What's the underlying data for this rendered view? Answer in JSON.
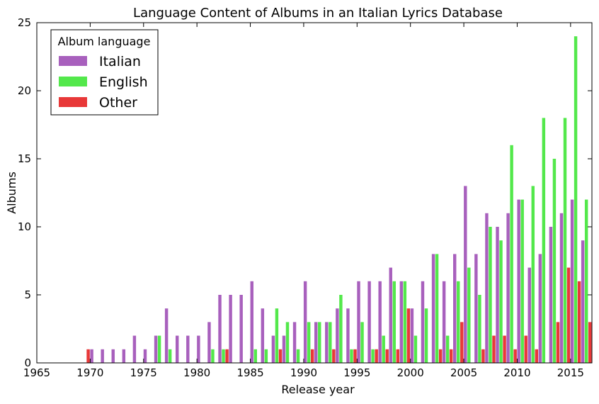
{
  "chart_data": {
    "type": "bar",
    "title": "Language Content of Albums in an Italian Lyrics Database",
    "xlabel": "Release year",
    "ylabel": "Albums",
    "xlim": [
      1965,
      2017
    ],
    "ylim": [
      0,
      25
    ],
    "xticks": [
      1965,
      1970,
      1975,
      1980,
      1985,
      1990,
      1995,
      2000,
      2005,
      2010,
      2015
    ],
    "yticks": [
      0,
      5,
      10,
      15,
      20,
      25
    ],
    "legend": {
      "title": "Album language",
      "position": "top-left"
    },
    "x": [
      1969,
      1970,
      1971,
      1972,
      1973,
      1974,
      1975,
      1976,
      1977,
      1978,
      1979,
      1980,
      1981,
      1982,
      1983,
      1984,
      1985,
      1986,
      1987,
      1988,
      1989,
      1990,
      1991,
      1992,
      1993,
      1994,
      1995,
      1996,
      1997,
      1998,
      1999,
      2000,
      2001,
      2002,
      2003,
      2004,
      2005,
      2006,
      2007,
      2008,
      2009,
      2010,
      2011,
      2012,
      2013,
      2014,
      2015,
      2016
    ],
    "series": [
      {
        "name": "Italian",
        "color": "#a860bd",
        "values": [
          0,
          1,
          1,
          1,
          1,
          2,
          1,
          2,
          4,
          2,
          2,
          2,
          3,
          5,
          5,
          5,
          6,
          4,
          2,
          2,
          3,
          6,
          3,
          3,
          4,
          4,
          6,
          6,
          6,
          7,
          6,
          4,
          6,
          8,
          6,
          8,
          13,
          8,
          11,
          10,
          11,
          12,
          7,
          8,
          10,
          11,
          12,
          9
        ]
      },
      {
        "name": "English",
        "color": "#53e84b",
        "values": [
          0,
          0,
          0,
          0,
          0,
          0,
          0,
          2,
          1,
          0,
          0,
          0,
          1,
          1,
          0,
          0,
          1,
          1,
          4,
          3,
          1,
          3,
          3,
          3,
          5,
          1,
          3,
          1,
          2,
          6,
          6,
          2,
          4,
          8,
          2,
          6,
          7,
          5,
          10,
          9,
          16,
          12,
          13,
          18,
          15,
          18,
          24,
          12
        ]
      },
      {
        "name": "Other",
        "color": "#e83838",
        "values": [
          1,
          0,
          0,
          0,
          0,
          0,
          0,
          0,
          0,
          0,
          0,
          0,
          0,
          1,
          0,
          0,
          0,
          0,
          1,
          0,
          0,
          1,
          0,
          1,
          0,
          1,
          0,
          1,
          1,
          1,
          4,
          0,
          0,
          1,
          1,
          3,
          0,
          1,
          2,
          2,
          1,
          2,
          1,
          0,
          3,
          7,
          6,
          3
        ]
      }
    ]
  }
}
